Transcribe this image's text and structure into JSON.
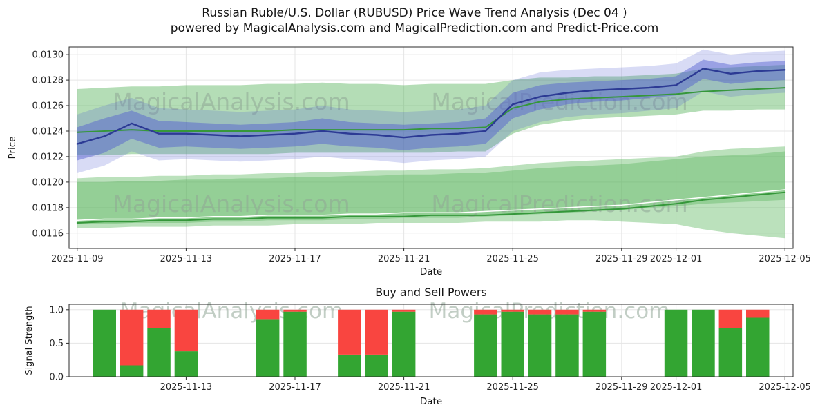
{
  "header": {
    "title_line1": "Russian Ruble/U.S. Dollar (RUBUSD) Price Wave Trend Analysis (Dec 04 )",
    "title_line2": "powered by MagicalAnalysis.com and MagicalPrediction.com and Predict-Price.com"
  },
  "watermarks": {
    "left_text": "MagicalAnalysis.com",
    "right_text": "MagicalPrediction.com"
  },
  "colors": {
    "green_band": "#4caf50",
    "green_line": "#35973a",
    "white_line": "#ffffff",
    "blue_line": "#2c3a94",
    "blue_band": "#4f5bd0",
    "bar_buy": "#33a532",
    "bar_sell": "#f94540",
    "watermark": "#8fa695",
    "grid": "#e5e5e5",
    "spine": "#2b2b2b",
    "text": "#141414"
  },
  "chart_data": [
    {
      "type": "line",
      "title": "",
      "xlabel": "Date",
      "ylabel": "Price",
      "xlim_days": [
        -0.3,
        26.3
      ],
      "ylim": [
        0.01148,
        0.01306
      ],
      "yticks": [
        0.0116,
        0.0118,
        0.012,
        0.0122,
        0.0124,
        0.0126,
        0.0128,
        0.013
      ],
      "ytick_labels": [
        "0.0116",
        "0.0118",
        "0.0120",
        "0.0122",
        "0.0124",
        "0.0126",
        "0.0128",
        "0.0130"
      ],
      "xticks": [
        {
          "d": 0,
          "label": "2025-11-09"
        },
        {
          "d": 4,
          "label": "2025-11-13"
        },
        {
          "d": 8,
          "label": "2025-11-17"
        },
        {
          "d": 12,
          "label": "2025-11-21"
        },
        {
          "d": 16,
          "label": "2025-11-25"
        },
        {
          "d": 20,
          "label": "2025-11-29"
        },
        {
          "d": 22,
          "label": "2025-12-01"
        },
        {
          "d": 26,
          "label": "2025-12-05"
        }
      ],
      "x_days": [
        0,
        1,
        2,
        3,
        4,
        5,
        6,
        7,
        8,
        9,
        10,
        11,
        12,
        13,
        14,
        15,
        16,
        17,
        18,
        19,
        20,
        21,
        22,
        23,
        24,
        25,
        26
      ],
      "start_date": "2025-11-09",
      "end_date": "2025-12-05",
      "bands": [
        {
          "name": "upper-forecast-band",
          "color": "green_band",
          "opacity": 0.42,
          "z": 1,
          "upper": [
            0.01273,
            0.01274,
            0.01275,
            0.01275,
            0.01276,
            0.01276,
            0.01276,
            0.01277,
            0.01277,
            0.01278,
            0.01277,
            0.01277,
            0.01276,
            0.01277,
            0.01277,
            0.01277,
            0.0128,
            0.01282,
            0.01282,
            0.01283,
            0.01283,
            0.01284,
            0.01285,
            0.01289,
            0.0129,
            0.01291,
            0.01292
          ],
          "lower": [
            0.01221,
            0.01221,
            0.01222,
            0.01222,
            0.01222,
            0.01222,
            0.01222,
            0.01222,
            0.01223,
            0.01223,
            0.01223,
            0.01223,
            0.01223,
            0.01223,
            0.01224,
            0.01224,
            0.01238,
            0.01245,
            0.01248,
            0.0125,
            0.01251,
            0.01252,
            0.01253,
            0.01256,
            0.01256,
            0.01257,
            0.01257
          ]
        },
        {
          "name": "mid-forecast-band",
          "color": "green_band",
          "opacity": 0.38,
          "z": 1,
          "upper": [
            0.01203,
            0.01204,
            0.01204,
            0.01205,
            0.01205,
            0.01206,
            0.01206,
            0.01207,
            0.01207,
            0.01208,
            0.01208,
            0.01209,
            0.01209,
            0.0121,
            0.0121,
            0.01211,
            0.01213,
            0.01215,
            0.01216,
            0.01217,
            0.01218,
            0.01219,
            0.0122,
            0.01224,
            0.01226,
            0.01227,
            0.01228
          ],
          "lower": [
            0.01164,
            0.01164,
            0.01165,
            0.01165,
            0.01165,
            0.01166,
            0.01166,
            0.01166,
            0.01167,
            0.01167,
            0.01167,
            0.01168,
            0.01168,
            0.01168,
            0.01168,
            0.01169,
            0.01169,
            0.01169,
            0.0117,
            0.0117,
            0.01169,
            0.01168,
            0.01167,
            0.01163,
            0.0116,
            0.01158,
            0.01156
          ]
        },
        {
          "name": "lower-forecast-band",
          "color": "green_band",
          "opacity": 0.35,
          "z": 1,
          "upper": [
            0.012,
            0.012,
            0.01201,
            0.01201,
            0.01202,
            0.01202,
            0.01203,
            0.01203,
            0.01204,
            0.01204,
            0.01205,
            0.01205,
            0.01206,
            0.01206,
            0.01207,
            0.01207,
            0.01209,
            0.01211,
            0.01212,
            0.01213,
            0.01214,
            0.01216,
            0.01218,
            0.0122,
            0.01221,
            0.01222,
            0.01224
          ],
          "lower": [
            0.01167,
            0.01167,
            0.01168,
            0.01168,
            0.01168,
            0.01169,
            0.01169,
            0.0117,
            0.0117,
            0.0117,
            0.01171,
            0.01171,
            0.01172,
            0.01172,
            0.01172,
            0.01173,
            0.01174,
            0.01175,
            0.01176,
            0.01177,
            0.01178,
            0.0118,
            0.01181,
            0.01183,
            0.01184,
            0.01185,
            0.01186
          ]
        },
        {
          "name": "price-uncertainty-band-outer",
          "color": "blue_band",
          "opacity": 0.22,
          "z": 2,
          "upper": [
            0.01253,
            0.0126,
            0.01266,
            0.01258,
            0.01257,
            0.01256,
            0.01255,
            0.01256,
            0.01257,
            0.0126,
            0.01257,
            0.01256,
            0.01255,
            0.01256,
            0.01257,
            0.0126,
            0.0128,
            0.01286,
            0.01288,
            0.01289,
            0.0129,
            0.01291,
            0.01293,
            0.01304,
            0.013,
            0.01302,
            0.01303
          ],
          "lower": [
            0.01207,
            0.01213,
            0.01224,
            0.01217,
            0.01218,
            0.01217,
            0.01216,
            0.01217,
            0.01218,
            0.0122,
            0.01218,
            0.01217,
            0.01215,
            0.01217,
            0.01218,
            0.0122,
            0.0124,
            0.01247,
            0.01251,
            0.01253,
            0.01254,
            0.01256,
            0.01258,
            0.01271,
            0.01267,
            0.01269,
            0.0127
          ]
        },
        {
          "name": "price-uncertainty-band-inner",
          "color": "blue_band",
          "opacity": 0.45,
          "z": 2,
          "upper": [
            0.01243,
            0.0125,
            0.01256,
            0.01248,
            0.01247,
            0.01246,
            0.01245,
            0.01246,
            0.01247,
            0.0125,
            0.01247,
            0.01246,
            0.01245,
            0.01246,
            0.01247,
            0.0125,
            0.0127,
            0.01276,
            0.01278,
            0.01279,
            0.0128,
            0.01281,
            0.01283,
            0.01296,
            0.01292,
            0.01294,
            0.01295
          ],
          "lower": [
            0.01217,
            0.01223,
            0.01234,
            0.01227,
            0.01228,
            0.01227,
            0.01226,
            0.01227,
            0.01228,
            0.0123,
            0.01228,
            0.01227,
            0.01225,
            0.01227,
            0.01228,
            0.0123,
            0.0125,
            0.01257,
            0.01261,
            0.01263,
            0.01264,
            0.01266,
            0.01268,
            0.01281,
            0.01277,
            0.01279,
            0.0128
          ]
        }
      ],
      "lines": [
        {
          "name": "upper-trend-line",
          "color": "green_line",
          "width": 2,
          "values": [
            0.01239,
            0.0124,
            0.01241,
            0.0124,
            0.0124,
            0.0124,
            0.0124,
            0.0124,
            0.01241,
            0.01241,
            0.01241,
            0.01241,
            0.01241,
            0.01242,
            0.01242,
            0.01243,
            0.01258,
            0.01263,
            0.01265,
            0.01266,
            0.01267,
            0.01268,
            0.01269,
            0.01271,
            0.01272,
            0.01273,
            0.01274
          ]
        },
        {
          "name": "lower-trend-line",
          "color": "green_line",
          "width": 2,
          "values": [
            0.01168,
            0.01169,
            0.01169,
            0.0117,
            0.0117,
            0.01171,
            0.01171,
            0.01172,
            0.01172,
            0.01172,
            0.01173,
            0.01173,
            0.01173,
            0.01174,
            0.01174,
            0.01174,
            0.01175,
            0.01176,
            0.01177,
            0.01178,
            0.01179,
            0.01181,
            0.01183,
            0.01186,
            0.01188,
            0.0119,
            0.01192
          ]
        },
        {
          "name": "lower-white-line",
          "color": "white_line",
          "width": 1.5,
          "values": [
            0.0117,
            0.01171,
            0.01171,
            0.01172,
            0.01172,
            0.01173,
            0.01173,
            0.01174,
            0.01174,
            0.01174,
            0.01175,
            0.01175,
            0.01176,
            0.01176,
            0.01176,
            0.01177,
            0.01178,
            0.01179,
            0.0118,
            0.01181,
            0.01182,
            0.01184,
            0.01186,
            0.01188,
            0.0119,
            0.01192,
            0.01194
          ]
        },
        {
          "name": "price-line",
          "color": "blue_line",
          "width": 2.4,
          "values": [
            0.0123,
            0.01236,
            0.01246,
            0.01238,
            0.01238,
            0.01237,
            0.01236,
            0.01237,
            0.01238,
            0.0124,
            0.01238,
            0.01237,
            0.01235,
            0.01237,
            0.01238,
            0.0124,
            0.01261,
            0.01267,
            0.0127,
            0.01272,
            0.01273,
            0.01274,
            0.01276,
            0.01289,
            0.01285,
            0.01287,
            0.01288
          ]
        }
      ]
    },
    {
      "type": "bar",
      "title": "Buy and Sell Powers",
      "xlabel": "Date",
      "ylabel": "Signal Strength",
      "xlim_days": [
        -0.3,
        26.3
      ],
      "ylim": [
        0,
        1.08
      ],
      "yticks": [
        0.0,
        0.5,
        1.0
      ],
      "ytick_labels": [
        "0.0",
        "0.5",
        "1.0"
      ],
      "xticks": [
        {
          "d": 4,
          "label": "2025-11-13"
        },
        {
          "d": 8,
          "label": "2025-11-17"
        },
        {
          "d": 12,
          "label": "2025-11-21"
        },
        {
          "d": 16,
          "label": "2025-11-25"
        },
        {
          "d": 20,
          "label": "2025-11-29"
        },
        {
          "d": 22,
          "label": "2025-12-01"
        },
        {
          "d": 26,
          "label": "2025-12-05"
        }
      ],
      "bar_width_days": 0.85,
      "series": [
        {
          "name": "buy-power",
          "color": "bar_buy"
        },
        {
          "name": "sell-power",
          "color": "bar_sell"
        }
      ],
      "bars": [
        {
          "d": 1,
          "date": "2025-11-10",
          "buy": 1.0,
          "sell": 0.0
        },
        {
          "d": 2,
          "date": "2025-11-11",
          "buy": 0.17,
          "sell": 0.83
        },
        {
          "d": 3,
          "date": "2025-11-12",
          "buy": 0.72,
          "sell": 0.28
        },
        {
          "d": 4,
          "date": "2025-11-13",
          "buy": 0.38,
          "sell": 0.62
        },
        {
          "d": 7,
          "date": "2025-11-16",
          "buy": 0.85,
          "sell": 0.15
        },
        {
          "d": 8,
          "date": "2025-11-17",
          "buy": 0.97,
          "sell": 0.03
        },
        {
          "d": 10,
          "date": "2025-11-19",
          "buy": 0.33,
          "sell": 0.67
        },
        {
          "d": 11,
          "date": "2025-11-20",
          "buy": 0.33,
          "sell": 0.67
        },
        {
          "d": 12,
          "date": "2025-11-21",
          "buy": 0.97,
          "sell": 0.03
        },
        {
          "d": 15,
          "date": "2025-11-24",
          "buy": 0.93,
          "sell": 0.07
        },
        {
          "d": 16,
          "date": "2025-11-25",
          "buy": 0.97,
          "sell": 0.03
        },
        {
          "d": 17,
          "date": "2025-11-26",
          "buy": 0.93,
          "sell": 0.07
        },
        {
          "d": 18,
          "date": "2025-11-27",
          "buy": 0.93,
          "sell": 0.07
        },
        {
          "d": 19,
          "date": "2025-11-28",
          "buy": 0.97,
          "sell": 0.03
        },
        {
          "d": 22,
          "date": "2025-12-01",
          "buy": 1.0,
          "sell": 0.0
        },
        {
          "d": 23,
          "date": "2025-12-02",
          "buy": 1.0,
          "sell": 0.0
        },
        {
          "d": 24,
          "date": "2025-12-03",
          "buy": 0.72,
          "sell": 0.28
        },
        {
          "d": 25,
          "date": "2025-12-04",
          "buy": 0.88,
          "sell": 0.12
        }
      ]
    }
  ]
}
